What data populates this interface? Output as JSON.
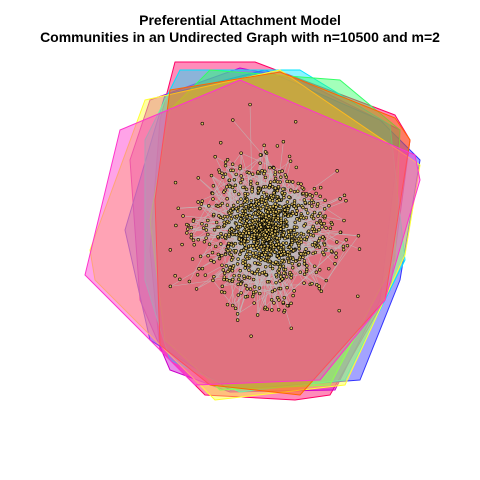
{
  "title": {
    "line1": "Preferential Attachment Model",
    "line2": "Communities in an Undirected Graph with n=10500 and m=2"
  },
  "graph": {
    "n": 10500,
    "m": 2,
    "edge_color": "#bdbdbd",
    "node_color": "#e0c060",
    "node_outline_color": "#000000",
    "community_colors": [
      "#ff0066",
      "#cc00cc",
      "#3333ff",
      "#00e5ff",
      "#33ff66",
      "#ffff33",
      "#ff6600",
      "#ff33cc"
    ]
  }
}
